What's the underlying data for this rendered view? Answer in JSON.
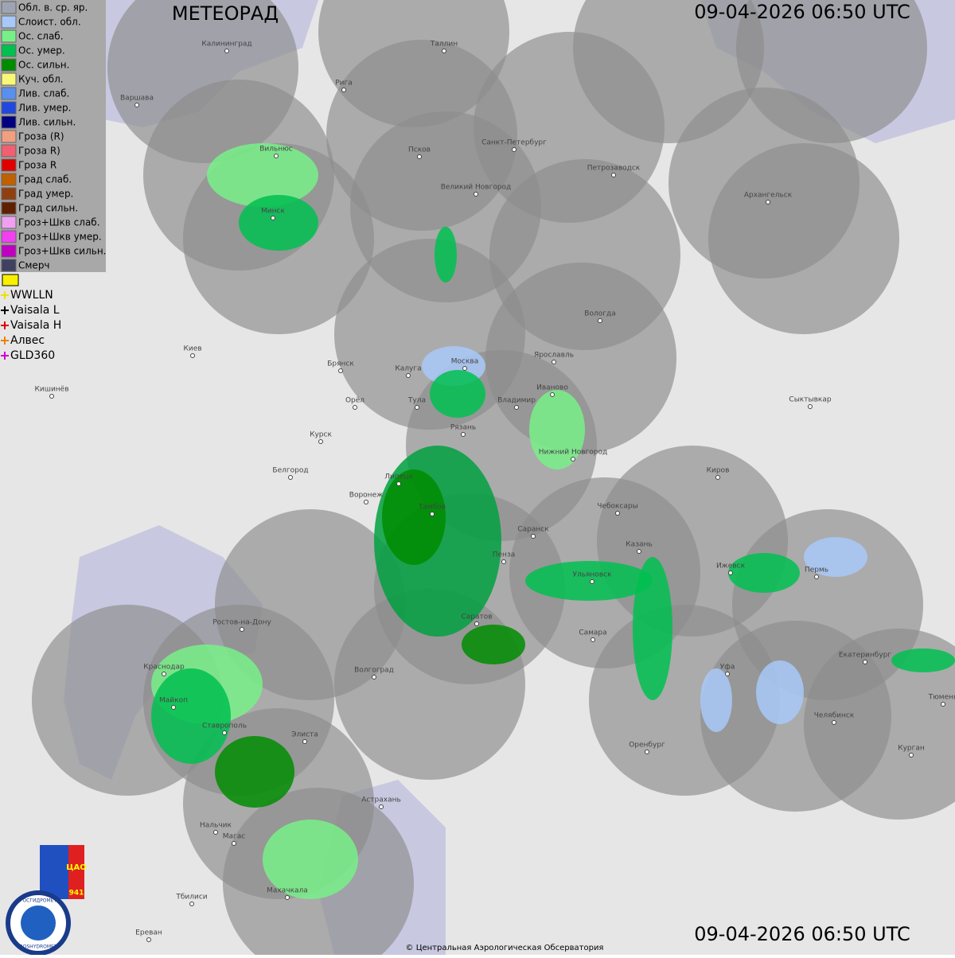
{
  "header": {
    "title": "МЕТЕОРАД",
    "timestamp": "09-04-2026  06:50 UTC"
  },
  "footer": {
    "timestamp": "09-04-2026  06:50 UTC",
    "copyright": "© Центральная Аэрологическая Обсерватория"
  },
  "legend": {
    "items": [
      {
        "label": "Обл. в. ср. яр.",
        "color": "#9ea4b4"
      },
      {
        "label": "Слоист. обл.",
        "color": "#a8c8f8"
      },
      {
        "label": "Ос. слаб.",
        "color": "#78f088"
      },
      {
        "label": "Ос. умер.",
        "color": "#00c050"
      },
      {
        "label": "Ос. сильн.",
        "color": "#008c00"
      },
      {
        "label": "Куч. обл.",
        "color": "#f8f878"
      },
      {
        "label": "Лив. слаб.",
        "color": "#5890f0"
      },
      {
        "label": "Лив. умер.",
        "color": "#2048e0"
      },
      {
        "label": "Лив. сильн.",
        "color": "#000080"
      },
      {
        "label": "Гроза (R)",
        "color": "#f0a080"
      },
      {
        "label": "Гроза R)",
        "color": "#f06070"
      },
      {
        "label": "Гроза R",
        "color": "#e00000"
      },
      {
        "label": "Град слаб.",
        "color": "#c06000"
      },
      {
        "label": "Град умер.",
        "color": "#904010"
      },
      {
        "label": "Град сильн.",
        "color": "#602000"
      },
      {
        "label": "Гроз+Шкв слаб.",
        "color": "#f0a0f0"
      },
      {
        "label": "Гроз+Шкв умер.",
        "color": "#f040f0"
      },
      {
        "label": "Гроз+Шкв сильн.",
        "color": "#c000c0"
      },
      {
        "label": "Смерч",
        "color": "#404060"
      }
    ],
    "lightning": [
      {
        "label": "WWLLN",
        "color": "#f0e000"
      },
      {
        "label": "Vaisala L",
        "color": "#000000"
      },
      {
        "label": "Vaisala H",
        "color": "#e00000"
      },
      {
        "label": "Алвес",
        "color": "#f08000"
      },
      {
        "label": "GLD360",
        "color": "#d000d0"
      }
    ]
  },
  "cities": [
    "Калининград",
    "Таллин",
    "Рига",
    "Варшава",
    "Вильнюс",
    "Псков",
    "Санкт-Петербург",
    "Петрозаводск",
    "Великий Новгород",
    "Архангельск",
    "Минск",
    "Вологда",
    "Киев",
    "Брянск",
    "Калуга",
    "Москва",
    "Ярославль",
    "Кишинёв",
    "Орёл",
    "Тула",
    "Владимир",
    "Иваново",
    "Сыктывкар",
    "Рязань",
    "Курск",
    "Нижний Новгород",
    "Белгород",
    "Липецк",
    "Киров",
    "Воронеж",
    "Тамбов",
    "Чебоксары",
    "Саранск",
    "Казань",
    "Пенза",
    "Ижевск",
    "Пермь",
    "Ульяновск",
    "Саратов",
    "Самара",
    "Ростов-на-Дону",
    "Волгоград",
    "Екатеринбург",
    "Краснодар",
    "Уфа",
    "Тюмень",
    "Майкоп",
    "Ставрополь",
    "Элиста",
    "Челябинск",
    "Оренбург",
    "Курган",
    "Астрахань",
    "Нальчик",
    "Магас",
    "Махачкала",
    "Тбилиси",
    "Ереван"
  ],
  "logo": {
    "cao": "ЦАО",
    "number": "941",
    "ru": "РОСГИДРОМЕТ",
    "en": "ROSHYDROMET"
  }
}
